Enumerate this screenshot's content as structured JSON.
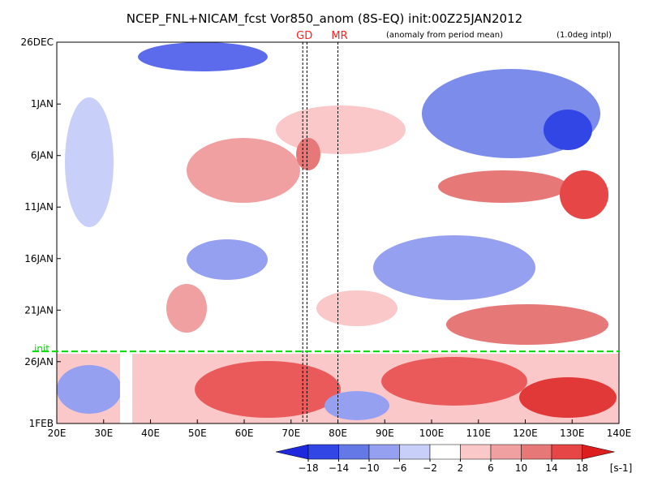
{
  "chart_data": {
    "type": "hovmoller",
    "title": "NCEP_FNL+NICAM_fcst Vor850_anom (8S-EQ) init:00Z25JAN2012",
    "annotations": [
      "(anomaly from period mean)",
      "(1.0deg intpl)"
    ],
    "xlim": [
      20,
      140
    ],
    "xticks": [
      {
        "value": 20,
        "label": "20E"
      },
      {
        "value": 30,
        "label": "30E"
      },
      {
        "value": 40,
        "label": "40E"
      },
      {
        "value": 50,
        "label": "50E"
      },
      {
        "value": 60,
        "label": "60E"
      },
      {
        "value": 70,
        "label": "70E"
      },
      {
        "value": 80,
        "label": "80E"
      },
      {
        "value": 90,
        "label": "90E"
      },
      {
        "value": 100,
        "label": "100E"
      },
      {
        "value": 110,
        "label": "110E"
      },
      {
        "value": 120,
        "label": "120E"
      },
      {
        "value": 130,
        "label": "130E"
      },
      {
        "value": 140,
        "label": "140E"
      }
    ],
    "ylim": [
      0,
      37
    ],
    "yticks": [
      {
        "value": 0,
        "label": "26DEC"
      },
      {
        "value": 6,
        "label": "1JAN"
      },
      {
        "value": 11,
        "label": "6JAN"
      },
      {
        "value": 16,
        "label": "11JAN"
      },
      {
        "value": 21,
        "label": "16JAN"
      },
      {
        "value": 26,
        "label": "21JAN"
      },
      {
        "value": 31,
        "label": "26JAN"
      },
      {
        "value": 37,
        "label": "1FEB"
      }
    ],
    "init_line": {
      "label": "init",
      "value": 30,
      "color": "#00dd00"
    },
    "vertical_lines": [
      {
        "label": "GD",
        "values": [
          72.5,
          73.4
        ]
      },
      {
        "label": "MR",
        "values": [
          80
        ]
      }
    ],
    "marker_color": "#ff2020",
    "colorbar": {
      "levels": [
        {
          "value": -18,
          "label": "−18"
        },
        {
          "value": -14,
          "label": "−14"
        },
        {
          "value": -10,
          "label": "−10"
        },
        {
          "value": -6,
          "label": "−6"
        },
        {
          "value": -2,
          "label": "−2"
        },
        2,
        6,
        10,
        14,
        18
      ],
      "colors": [
        "#1e28dc",
        "#3246e6",
        "#6478e6",
        "#96a0f0",
        "#c8d0fa",
        "#ffffff",
        "#fac8c8",
        "#f0a0a0",
        "#e67878",
        "#e64646",
        "#dc1e1e"
      ],
      "unit": "[s-1]"
    }
  }
}
